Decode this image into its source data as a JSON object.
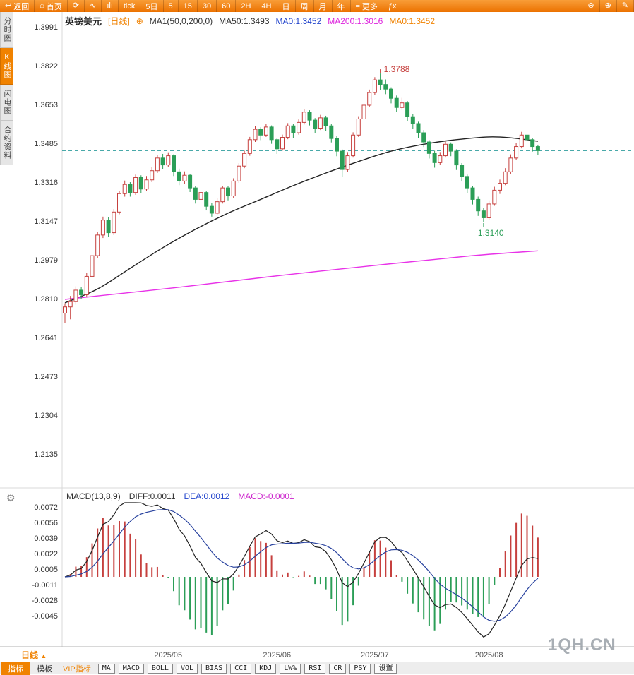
{
  "toolbar": {
    "items": [
      {
        "glyph": "↩",
        "label": "返回"
      },
      {
        "glyph": "⌂",
        "label": "首页"
      },
      {
        "glyph": "⟳"
      },
      {
        "glyph": "∿"
      },
      {
        "glyph": "ılı"
      },
      {
        "label": "tick"
      },
      {
        "label": "5日"
      },
      {
        "label": "5"
      },
      {
        "label": "15"
      },
      {
        "label": "30"
      },
      {
        "label": "60"
      },
      {
        "label": "2H"
      },
      {
        "label": "4H"
      },
      {
        "label": "日"
      },
      {
        "label": "周"
      },
      {
        "label": "月"
      },
      {
        "label": "年"
      },
      {
        "glyph": "≡",
        "label": "更多"
      },
      {
        "label": "ƒx"
      },
      {
        "glyph": "⊖"
      },
      {
        "glyph": "⊕"
      },
      {
        "glyph": "✎"
      }
    ]
  },
  "sidebar": {
    "tabs": [
      {
        "label": "分时图"
      },
      {
        "label": "K线图"
      },
      {
        "label": "闪电图"
      },
      {
        "label": "合约资料"
      }
    ]
  },
  "header": {
    "symbol": "英镑美元",
    "period_tag": "[日线]",
    "link_icon": "⊕",
    "ma_settings": "MA1(50,0,200,0)",
    "ma50": "MA50:1.3493",
    "ma0_blue": "MA0:1.3452",
    "ma200": "MA200:1.3016",
    "ma0_orange": "MA0:1.3452"
  },
  "macd_header": {
    "title": "MACD(13,8,9)",
    "diff": "DIFF:0.0011",
    "dea": "DEA:0.0012",
    "macd": "MACD:-0.0001"
  },
  "bottom": {
    "period_label": "日线",
    "period_arrow": "▲",
    "tabs": [
      "指标",
      "模板",
      "VIP指标",
      "MA",
      "MACD",
      "BOLL",
      "VOL",
      "BIAS",
      "CCI",
      "KDJ",
      "LW%",
      "RSI",
      "CR",
      "PSY",
      "设置"
    ]
  },
  "watermark": "1QH.CN",
  "gear_icon": "⚙",
  "chart_data": {
    "type": "candlestick",
    "title": "英镑美元 日线",
    "y_axis_labels": [
      "1.3991",
      "1.3822",
      "1.3653",
      "1.3485",
      "1.3316",
      "1.3147",
      "1.2979",
      "1.2810",
      "1.2641",
      "1.2473",
      "1.2304",
      "1.2135"
    ],
    "x_axis_labels": [
      {
        "label": "2025/05",
        "index": 19
      },
      {
        "label": "2025/06",
        "index": 39
      },
      {
        "label": "2025/07",
        "index": 57
      },
      {
        "label": "2025/08",
        "index": 78
      }
    ],
    "current_price": 1.3452,
    "high_annotation": {
      "label": "1.3788",
      "price": 1.3788,
      "index": 58
    },
    "low_annotation": {
      "label": "1.3140",
      "price": 1.314,
      "index": 77
    },
    "ma50_points": [
      {
        "i": 0,
        "v": 1.279
      },
      {
        "i": 6,
        "v": 1.285
      },
      {
        "i": 12,
        "v": 1.294
      },
      {
        "i": 18,
        "v": 1.303
      },
      {
        "i": 24,
        "v": 1.311
      },
      {
        "i": 30,
        "v": 1.318
      },
      {
        "i": 36,
        "v": 1.324
      },
      {
        "i": 42,
        "v": 1.33
      },
      {
        "i": 48,
        "v": 1.3355
      },
      {
        "i": 54,
        "v": 1.3405
      },
      {
        "i": 60,
        "v": 1.345
      },
      {
        "i": 66,
        "v": 1.348
      },
      {
        "i": 72,
        "v": 1.35
      },
      {
        "i": 78,
        "v": 1.3512
      },
      {
        "i": 82,
        "v": 1.3508
      },
      {
        "i": 87,
        "v": 1.3493
      }
    ],
    "ma200_points": [
      {
        "i": 0,
        "v": 1.2805
      },
      {
        "i": 20,
        "v": 1.2855
      },
      {
        "i": 40,
        "v": 1.291
      },
      {
        "i": 60,
        "v": 1.296
      },
      {
        "i": 75,
        "v": 1.2995
      },
      {
        "i": 87,
        "v": 1.3016
      }
    ],
    "macd": {
      "params": "13,8,9",
      "fast": 8,
      "slow": 13,
      "signal": 9,
      "diff": 0.0011,
      "dea": 0.0012,
      "hist": -0.0001,
      "y_axis_labels": [
        "0.0072",
        "0.0056",
        "0.0039",
        "0.0022",
        "0.0005",
        "-0.0011",
        "-0.0028",
        "-0.0045"
      ]
    },
    "colors": {
      "up": "#c6403e",
      "down": "#2b9e57",
      "ma50": "#222222",
      "ma200": "#e832e8",
      "price_line": "#2f9d9d",
      "diff_line": "#222222",
      "dea_line": "#27419e"
    },
    "candles": [
      [
        1.2745,
        1.2788,
        1.2702,
        1.2772
      ],
      [
        1.2772,
        1.282,
        1.2718,
        1.2795
      ],
      [
        1.2795,
        1.2862,
        1.2782,
        1.2845
      ],
      [
        1.2845,
        1.2858,
        1.2805,
        1.2825
      ],
      [
        1.2825,
        1.292,
        1.2815,
        1.2905
      ],
      [
        1.2905,
        1.3012,
        1.2895,
        1.2995
      ],
      [
        1.2995,
        1.3098,
        1.2985,
        1.3085
      ],
      [
        1.3085,
        1.3165,
        1.3072,
        1.315
      ],
      [
        1.315,
        1.3162,
        1.3078,
        1.3095
      ],
      [
        1.3095,
        1.3198,
        1.3085,
        1.3185
      ],
      [
        1.3185,
        1.3278,
        1.3175,
        1.3265
      ],
      [
        1.3265,
        1.3322,
        1.3252,
        1.3305
      ],
      [
        1.3305,
        1.3315,
        1.3252,
        1.327
      ],
      [
        1.327,
        1.3348,
        1.326,
        1.3335
      ],
      [
        1.3335,
        1.3345,
        1.3268,
        1.3285
      ],
      [
        1.3285,
        1.3342,
        1.3275,
        1.3325
      ],
      [
        1.3325,
        1.3382,
        1.3315,
        1.3365
      ],
      [
        1.3365,
        1.3432,
        1.3355,
        1.342
      ],
      [
        1.342,
        1.3438,
        1.3372,
        1.339
      ],
      [
        1.339,
        1.3445,
        1.3382,
        1.343
      ],
      [
        1.343,
        1.3436,
        1.3342,
        1.336
      ],
      [
        1.336,
        1.3374,
        1.3302,
        1.332
      ],
      [
        1.332,
        1.3362,
        1.3306,
        1.3345
      ],
      [
        1.3345,
        1.3352,
        1.3272,
        1.329
      ],
      [
        1.329,
        1.3298,
        1.3222,
        1.324
      ],
      [
        1.324,
        1.3286,
        1.3226,
        1.327
      ],
      [
        1.327,
        1.3276,
        1.3192,
        1.321
      ],
      [
        1.321,
        1.3224,
        1.3165,
        1.318
      ],
      [
        1.318,
        1.3246,
        1.3172,
        1.323
      ],
      [
        1.323,
        1.3298,
        1.3222,
        1.329
      ],
      [
        1.329,
        1.3299,
        1.3236,
        1.3255
      ],
      [
        1.3255,
        1.3332,
        1.3246,
        1.332
      ],
      [
        1.332,
        1.3398,
        1.3312,
        1.3385
      ],
      [
        1.3385,
        1.3452,
        1.3376,
        1.344
      ],
      [
        1.344,
        1.3512,
        1.343,
        1.35
      ],
      [
        1.35,
        1.3558,
        1.349,
        1.3545
      ],
      [
        1.3545,
        1.3554,
        1.3498,
        1.352
      ],
      [
        1.352,
        1.3568,
        1.3512,
        1.3555
      ],
      [
        1.3555,
        1.3562,
        1.3482,
        1.35
      ],
      [
        1.35,
        1.3508,
        1.3438,
        1.346
      ],
      [
        1.346,
        1.3522,
        1.3452,
        1.351
      ],
      [
        1.351,
        1.3572,
        1.3502,
        1.356
      ],
      [
        1.356,
        1.3568,
        1.3508,
        1.353
      ],
      [
        1.353,
        1.3588,
        1.3522,
        1.3575
      ],
      [
        1.3575,
        1.3632,
        1.3566,
        1.362
      ],
      [
        1.362,
        1.3628,
        1.3562,
        1.3585
      ],
      [
        1.3585,
        1.3594,
        1.3528,
        1.355
      ],
      [
        1.355,
        1.3608,
        1.3542,
        1.3595
      ],
      [
        1.3595,
        1.3604,
        1.3538,
        1.356
      ],
      [
        1.356,
        1.3568,
        1.3488,
        1.3505
      ],
      [
        1.3505,
        1.3515,
        1.3428,
        1.345
      ],
      [
        1.345,
        1.3458,
        1.3338,
        1.337
      ],
      [
        1.337,
        1.3446,
        1.336,
        1.343
      ],
      [
        1.343,
        1.3532,
        1.3422,
        1.352
      ],
      [
        1.352,
        1.3602,
        1.3512,
        1.359
      ],
      [
        1.359,
        1.3662,
        1.3582,
        1.365
      ],
      [
        1.365,
        1.3718,
        1.3642,
        1.3705
      ],
      [
        1.3705,
        1.3772,
        1.3696,
        1.376
      ],
      [
        1.376,
        1.3788,
        1.3716,
        1.374
      ],
      [
        1.374,
        1.3762,
        1.3698,
        1.372
      ],
      [
        1.372,
        1.3728,
        1.3658,
        1.368
      ],
      [
        1.368,
        1.3692,
        1.3622,
        1.364
      ],
      [
        1.364,
        1.3682,
        1.363,
        1.366
      ],
      [
        1.366,
        1.3668,
        1.3582,
        1.36
      ],
      [
        1.36,
        1.3612,
        1.3548,
        1.357
      ],
      [
        1.357,
        1.3578,
        1.3508,
        1.353
      ],
      [
        1.353,
        1.3542,
        1.3468,
        1.349
      ],
      [
        1.349,
        1.3498,
        1.3418,
        1.344
      ],
      [
        1.344,
        1.3452,
        1.3378,
        1.34
      ],
      [
        1.34,
        1.3446,
        1.339,
        1.343
      ],
      [
        1.343,
        1.3492,
        1.3422,
        1.348
      ],
      [
        1.348,
        1.3488,
        1.3428,
        1.345
      ],
      [
        1.345,
        1.3458,
        1.3368,
        1.339
      ],
      [
        1.339,
        1.3398,
        1.3318,
        1.334
      ],
      [
        1.334,
        1.3348,
        1.3268,
        1.329
      ],
      [
        1.329,
        1.3298,
        1.3218,
        1.324
      ],
      [
        1.324,
        1.3252,
        1.3168,
        1.319
      ],
      [
        1.319,
        1.3204,
        1.314,
        1.316
      ],
      [
        1.316,
        1.3236,
        1.315,
        1.322
      ],
      [
        1.322,
        1.3295,
        1.3212,
        1.328
      ],
      [
        1.328,
        1.3326,
        1.3264,
        1.331
      ],
      [
        1.331,
        1.3376,
        1.3302,
        1.336
      ],
      [
        1.336,
        1.3436,
        1.3352,
        1.342
      ],
      [
        1.342,
        1.3486,
        1.3412,
        1.347
      ],
      [
        1.347,
        1.3534,
        1.3462,
        1.352
      ],
      [
        1.352,
        1.3528,
        1.3478,
        1.35
      ],
      [
        1.35,
        1.3508,
        1.3448,
        1.347
      ],
      [
        1.347,
        1.3478,
        1.3432,
        1.3452
      ]
    ]
  }
}
